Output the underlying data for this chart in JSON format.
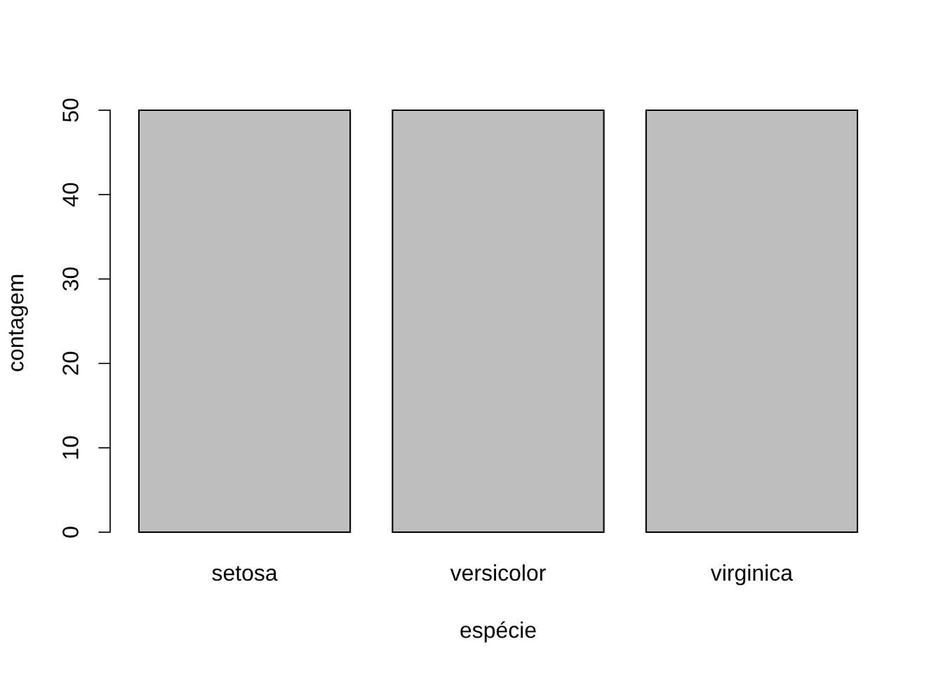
{
  "chart_data": {
    "type": "bar",
    "xlabel": "espécie",
    "ylabel": "contagem",
    "categories": [
      "setosa",
      "versicolor",
      "virginica"
    ],
    "values": [
      50,
      50,
      50
    ],
    "color": "#bebebe",
    "ylim": [
      0,
      50
    ],
    "yticks": [
      0,
      10,
      20,
      30,
      40,
      50
    ]
  }
}
